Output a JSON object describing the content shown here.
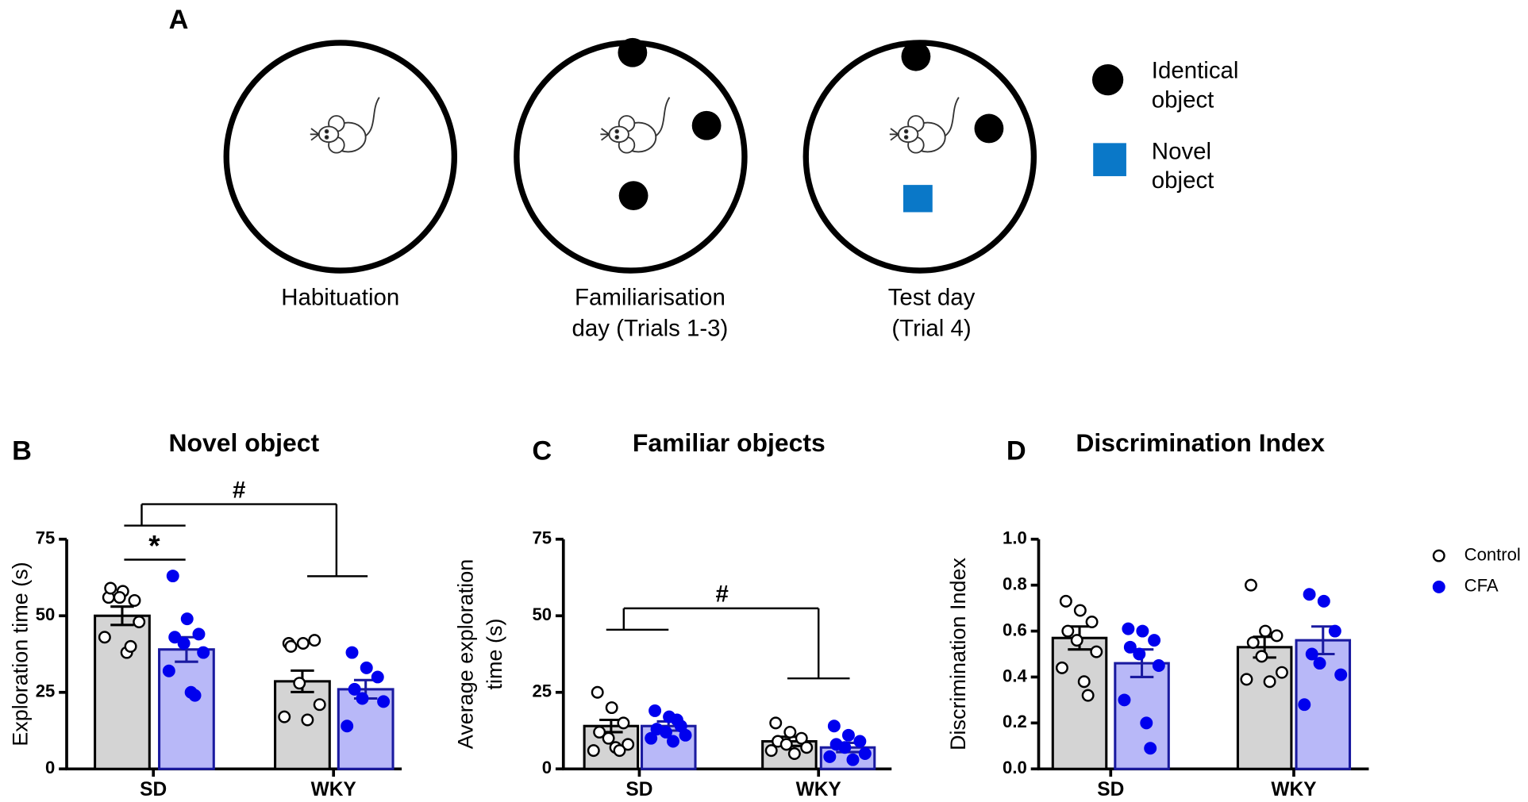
{
  "diagram": {
    "letter": "A",
    "labels": [
      [
        "Habituation"
      ],
      [
        "Familiarisation",
        "day (Trials 1-3)"
      ],
      [
        "Test day",
        "(Trial 4)"
      ]
    ],
    "legend": [
      [
        "Identical",
        "object"
      ],
      [
        "Novel",
        "object"
      ]
    ],
    "object_color": "#000000",
    "novel_color": "#0a78c8"
  },
  "chart_data": [
    {
      "type": "bar",
      "letter": "B",
      "title": "Novel object",
      "ylabel": [
        "Exploration time (s)"
      ],
      "categories": [
        "SD",
        "WKY"
      ],
      "ylim": [
        0,
        75
      ],
      "yticks": [
        0,
        25,
        50,
        75
      ],
      "annotations": [
        "#",
        "*"
      ],
      "series": [
        {
          "name": "Control",
          "color": "#d4d4d4",
          "edgecolor": "#000000",
          "pointcolor": "#000000",
          "pointfill": "#ffffff",
          "values": [
            50,
            28.6
          ],
          "errors": [
            3,
            3.5
          ],
          "points": [
            [
              56,
              58,
              55,
              59,
              56,
              48,
              43,
              38,
              40
            ],
            [
              41,
              41,
              42,
              40,
              28,
              21,
              17,
              16
            ]
          ]
        },
        {
          "name": "CFA",
          "color": "#b8b8f8",
          "edgecolor": "#1a1aa0",
          "pointcolor": "#0000ee",
          "pointfill": "#0000ee",
          "values": [
            39,
            26
          ],
          "errors": [
            4,
            3
          ],
          "points": [
            [
              63,
              49,
              44,
              43,
              41,
              38,
              32,
              25,
              24
            ],
            [
              38,
              33,
              30,
              26,
              23,
              22,
              14
            ]
          ]
        }
      ]
    },
    {
      "type": "bar",
      "letter": "C",
      "title": "Familiar objects",
      "ylabel": [
        "Average exploration",
        "time (s)"
      ],
      "categories": [
        "SD",
        "WKY"
      ],
      "ylim": [
        0,
        75
      ],
      "yticks": [
        0,
        25,
        50,
        75
      ],
      "annotations": [
        "#"
      ],
      "series": [
        {
          "name": "Control",
          "color": "#d4d4d4",
          "edgecolor": "#000000",
          "pointcolor": "#000000",
          "pointfill": "#ffffff",
          "values": [
            14,
            9
          ],
          "errors": [
            2,
            1.5
          ],
          "points": [
            [
              25,
              20,
              15,
              12,
              10,
              8,
              6,
              7,
              6
            ],
            [
              15,
              12,
              10,
              9,
              8,
              7,
              6,
              5
            ]
          ]
        },
        {
          "name": "CFA",
          "color": "#b8b8f8",
          "edgecolor": "#1a1aa0",
          "pointcolor": "#0000ee",
          "pointfill": "#0000ee",
          "values": [
            14,
            7
          ],
          "errors": [
            1.5,
            1.5
          ],
          "points": [
            [
              19,
              17,
              14,
              13,
              12,
              11,
              10,
              9,
              16
            ],
            [
              14,
              11,
              9,
              8,
              7,
              5,
              4,
              3
            ]
          ]
        }
      ]
    },
    {
      "type": "bar",
      "letter": "D",
      "title": "Discrimination Index",
      "ylabel": [
        "Discrimination Index"
      ],
      "categories": [
        "SD",
        "WKY"
      ],
      "ylim": [
        0,
        1
      ],
      "yticks": [
        {
          "value": 0,
          "label": "0.0"
        },
        0.2,
        0.4,
        0.6,
        0.8,
        {
          "value": 1,
          "label": "1.0"
        }
      ],
      "legend": "right",
      "series": [
        {
          "name": "Control",
          "color": "#d4d4d4",
          "edgecolor": "#000000",
          "pointcolor": "#000000",
          "pointfill": "#ffffff",
          "values": [
            0.57,
            0.53
          ],
          "errors": [
            0.05,
            0.045
          ],
          "points": [
            [
              0.73,
              0.69,
              0.64,
              0.6,
              0.56,
              0.51,
              0.44,
              0.38,
              0.32
            ],
            [
              0.8,
              0.6,
              0.58,
              0.55,
              0.49,
              0.42,
              0.39,
              0.38
            ]
          ]
        },
        {
          "name": "CFA",
          "color": "#b8b8f8",
          "edgecolor": "#1a1aa0",
          "pointcolor": "#0000ee",
          "pointfill": "#0000ee",
          "values": [
            0.46,
            0.56
          ],
          "errors": [
            0.06,
            0.06
          ],
          "points": [
            [
              0.61,
              0.6,
              0.56,
              0.53,
              0.5,
              0.45,
              0.3,
              0.2,
              0.09
            ],
            [
              0.76,
              0.73,
              0.6,
              0.5,
              0.46,
              0.41,
              0.28
            ]
          ]
        }
      ]
    }
  ]
}
